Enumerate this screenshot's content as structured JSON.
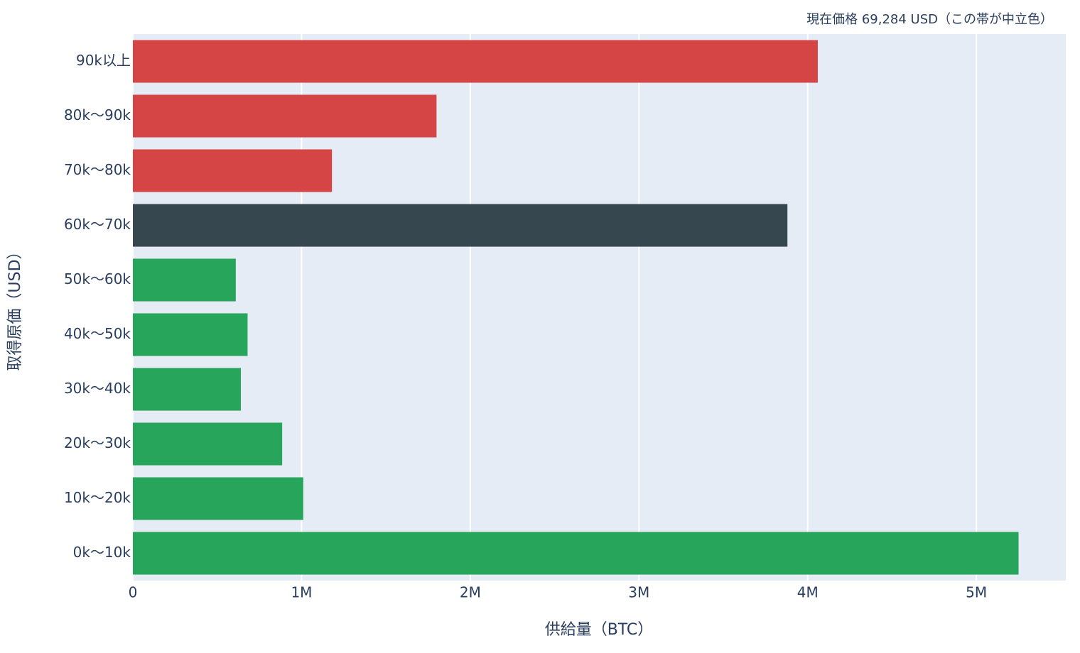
{
  "chart_data": {
    "type": "hbar",
    "annotation": "現在価格 69,284 USD（この帯が中立色）",
    "x_label": "供給量（BTC）",
    "y_label": "取得原価（USD）",
    "categories": [
      "0k〜10k",
      "10k〜20k",
      "20k〜30k",
      "30k〜40k",
      "40k〜50k",
      "50k〜60k",
      "60k〜70k",
      "70k〜80k",
      "80k〜90k",
      "90k以上"
    ],
    "values": [
      5250000,
      1010000,
      885000,
      640000,
      680000,
      610000,
      3880000,
      1180000,
      1800000,
      4060000
    ],
    "colors": [
      "#27a55a",
      "#27a55a",
      "#27a55a",
      "#27a55a",
      "#27a55a",
      "#27a55a",
      "#37474f",
      "#d64545",
      "#d64545",
      "#d64545"
    ],
    "xlim": [
      0,
      5530000
    ],
    "xticks": [
      0,
      {
        "value": 1000000,
        "label": "1M"
      },
      {
        "value": 2000000,
        "label": "2M"
      },
      {
        "value": 3000000,
        "label": "3M"
      },
      {
        "value": 4000000,
        "label": "4M"
      },
      {
        "value": 5000000,
        "label": "5M"
      }
    ],
    "grid": true
  }
}
